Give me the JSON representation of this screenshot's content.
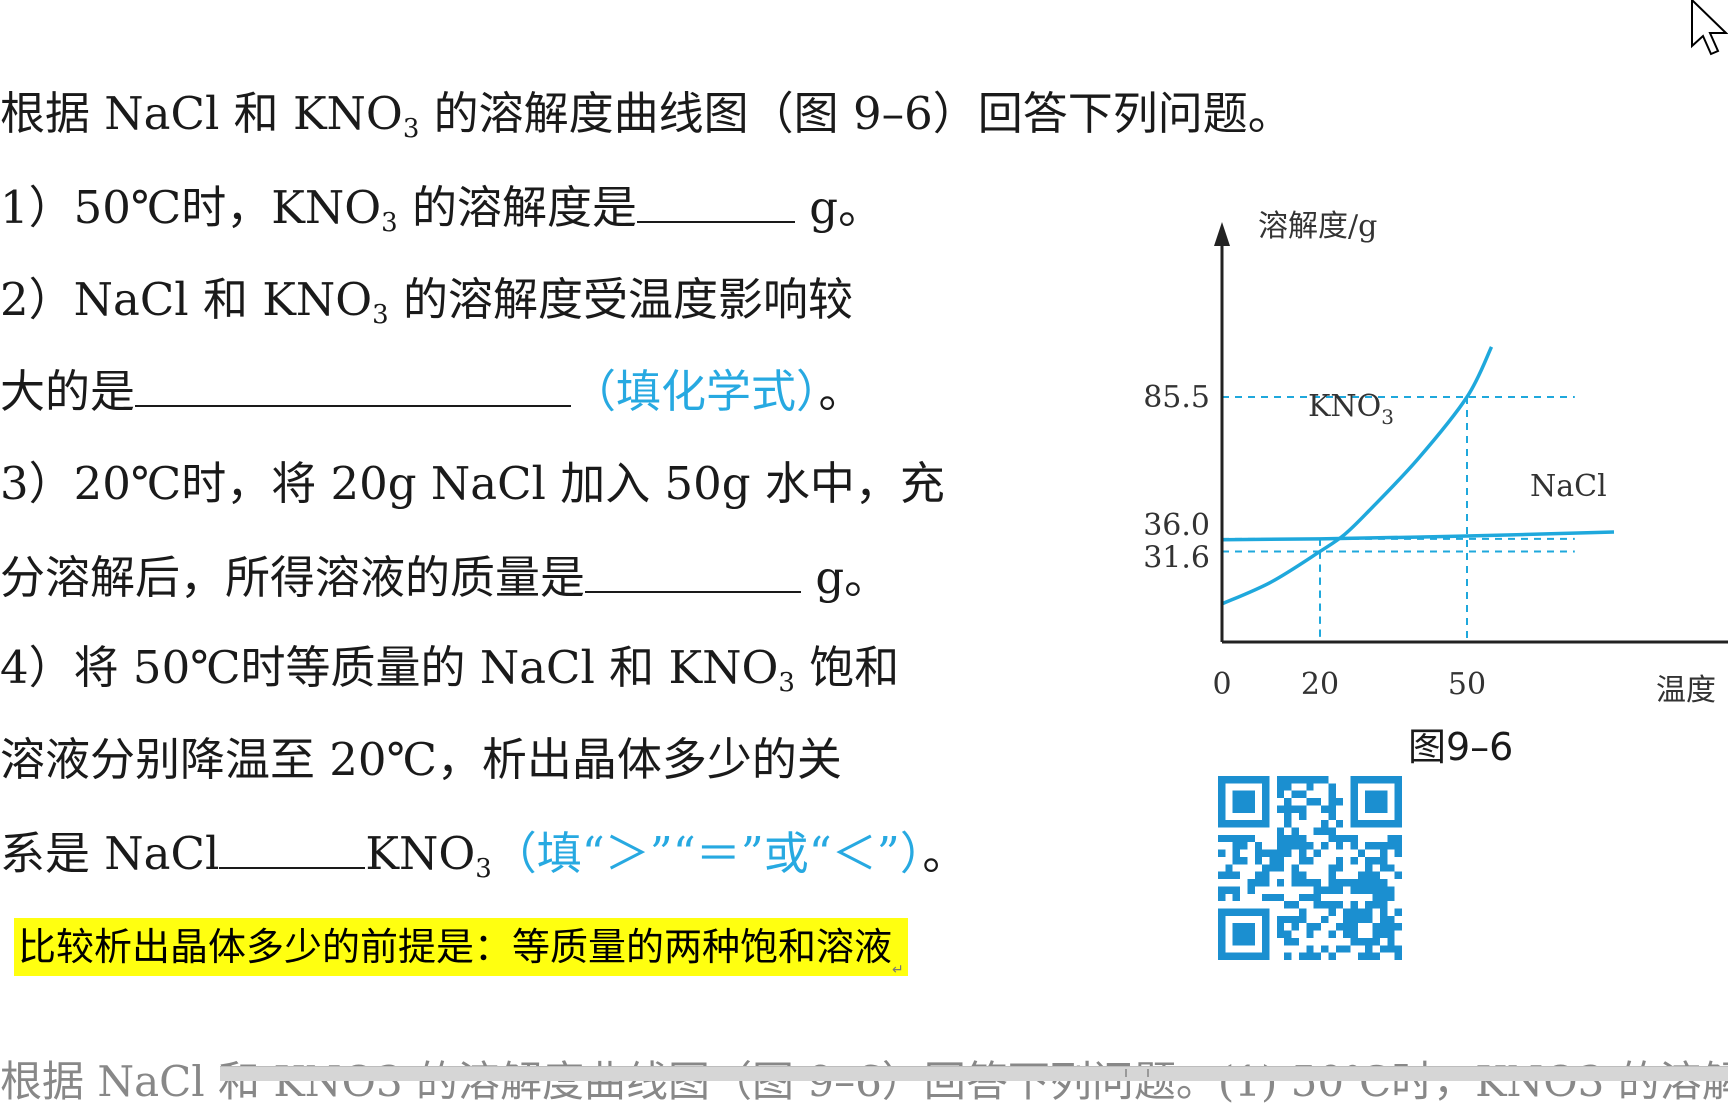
{
  "question": {
    "intro": "根据 NaCl 和 KNO",
    "intro_sub": "3",
    "intro_rest": " 的溶解度曲线图（图 9–6）回答下列问题。",
    "q1_a": "1）50℃时，KNO",
    "q1_sub": "3",
    "q1_b": " 的溶解度是",
    "q1_unit": " g。",
    "q2_a": "2）NaCl 和 KNO",
    "q2_sub": "3",
    "q2_b": " 的溶解度受温度影响较",
    "q2_line2": "大的是",
    "q2_hint": "（填化学式）",
    "q2_end": "。",
    "q3_a": "3）20℃时，将 20g NaCl 加入 50g 水中，充",
    "q3_line2": "分溶解后，所得溶液的质量是",
    "q3_unit": " g。",
    "q4_a": "4）将 50℃时等质量的 NaCl 和 KNO",
    "q4_sub": "3",
    "q4_b": " 饱和",
    "q4_line2": "溶液分别降温至 20℃，析出晶体多少的关",
    "q4_line3_a": "系是 NaCl",
    "q4_line3_b": "KNO",
    "q4_line3_sub": "3",
    "q4_hint": "（填“＞”“＝”或“＜”）",
    "q4_end": "。"
  },
  "note": {
    "text": "比较析出晶体多少的前提是：等质量的两种饱和溶液",
    "mark": "↵"
  },
  "cut_text": "根据 NaCl 和 KNO3 的溶解度曲线图（图 9–6）回答下列问题。(1) 50℃时，KNO3 的溶解",
  "chart_data": {
    "type": "line",
    "title": "",
    "ylabel": "溶解度/g",
    "xlabel": "温度",
    "caption": "图9–6",
    "x_ticks": [
      0,
      20,
      50
    ],
    "y_ticks": [
      31.6,
      36.0,
      85.5
    ],
    "xlim": [
      0,
      80
    ],
    "ylim": [
      0,
      110
    ],
    "series": [
      {
        "name": "KNO3",
        "label": "KNO",
        "label_sub": "3",
        "x": [
          0,
          10,
          20,
          25,
          30,
          40,
          50,
          55
        ],
        "y": [
          13.3,
          20.9,
          31.6,
          37.5,
          45.8,
          63.9,
          85.5,
          103
        ]
      },
      {
        "name": "NaCl",
        "label": "NaCl",
        "x": [
          0,
          20,
          50,
          80
        ],
        "y": [
          35.7,
          36.0,
          37.0,
          38.4
        ]
      }
    ],
    "guides": [
      {
        "x": 20,
        "y": 31.6
      },
      {
        "x": 20,
        "y": 36.0
      },
      {
        "x": 50,
        "y": 85.5
      }
    ],
    "line_color": "#1fa8dc"
  }
}
